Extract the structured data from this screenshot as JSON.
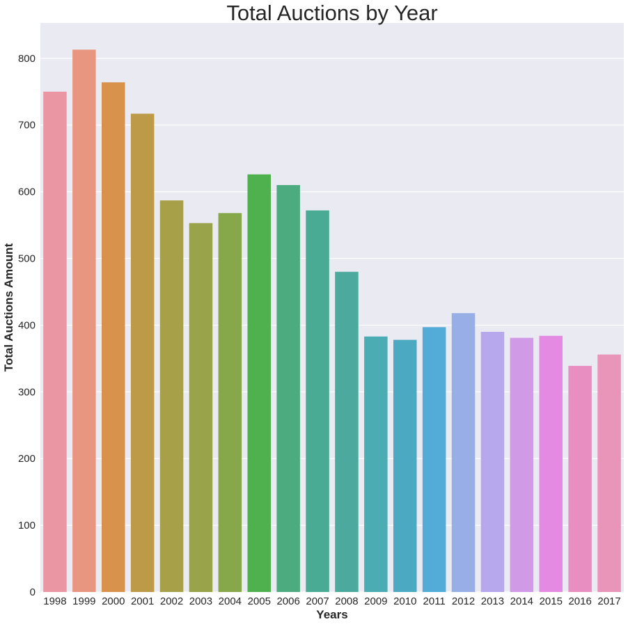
{
  "chart_data": {
    "type": "bar",
    "title": "Total Auctions by Year",
    "xlabel": "Years",
    "ylabel": "Total Auctions Amount",
    "categories": [
      "1998",
      "1999",
      "2000",
      "2001",
      "2002",
      "2003",
      "2004",
      "2005",
      "2006",
      "2007",
      "2008",
      "2009",
      "2010",
      "2011",
      "2012",
      "2013",
      "2014",
      "2015",
      "2016",
      "2017"
    ],
    "values": [
      750,
      813,
      764,
      717,
      587,
      553,
      568,
      626,
      610,
      572,
      480,
      383,
      378,
      397,
      418,
      390,
      381,
      384,
      339,
      356
    ],
    "ylim": [
      0,
      853
    ],
    "yticks": [
      0,
      100,
      200,
      300,
      400,
      500,
      600,
      700,
      800
    ],
    "grid": true,
    "legend": "none",
    "colors": [
      "#ea96a3",
      "#e8967f",
      "#d9924c",
      "#bd9a48",
      "#a8a048",
      "#98a34a",
      "#86a84a",
      "#4fb04e",
      "#4cab7f",
      "#4aab94",
      "#4ba99d",
      "#4badb3",
      "#4ca9c2",
      "#53abd8",
      "#98aee7",
      "#b7a7ec",
      "#d19ae6",
      "#e48ae2",
      "#e98ec1",
      "#e994b9"
    ],
    "background": "#eaeaf2"
  }
}
